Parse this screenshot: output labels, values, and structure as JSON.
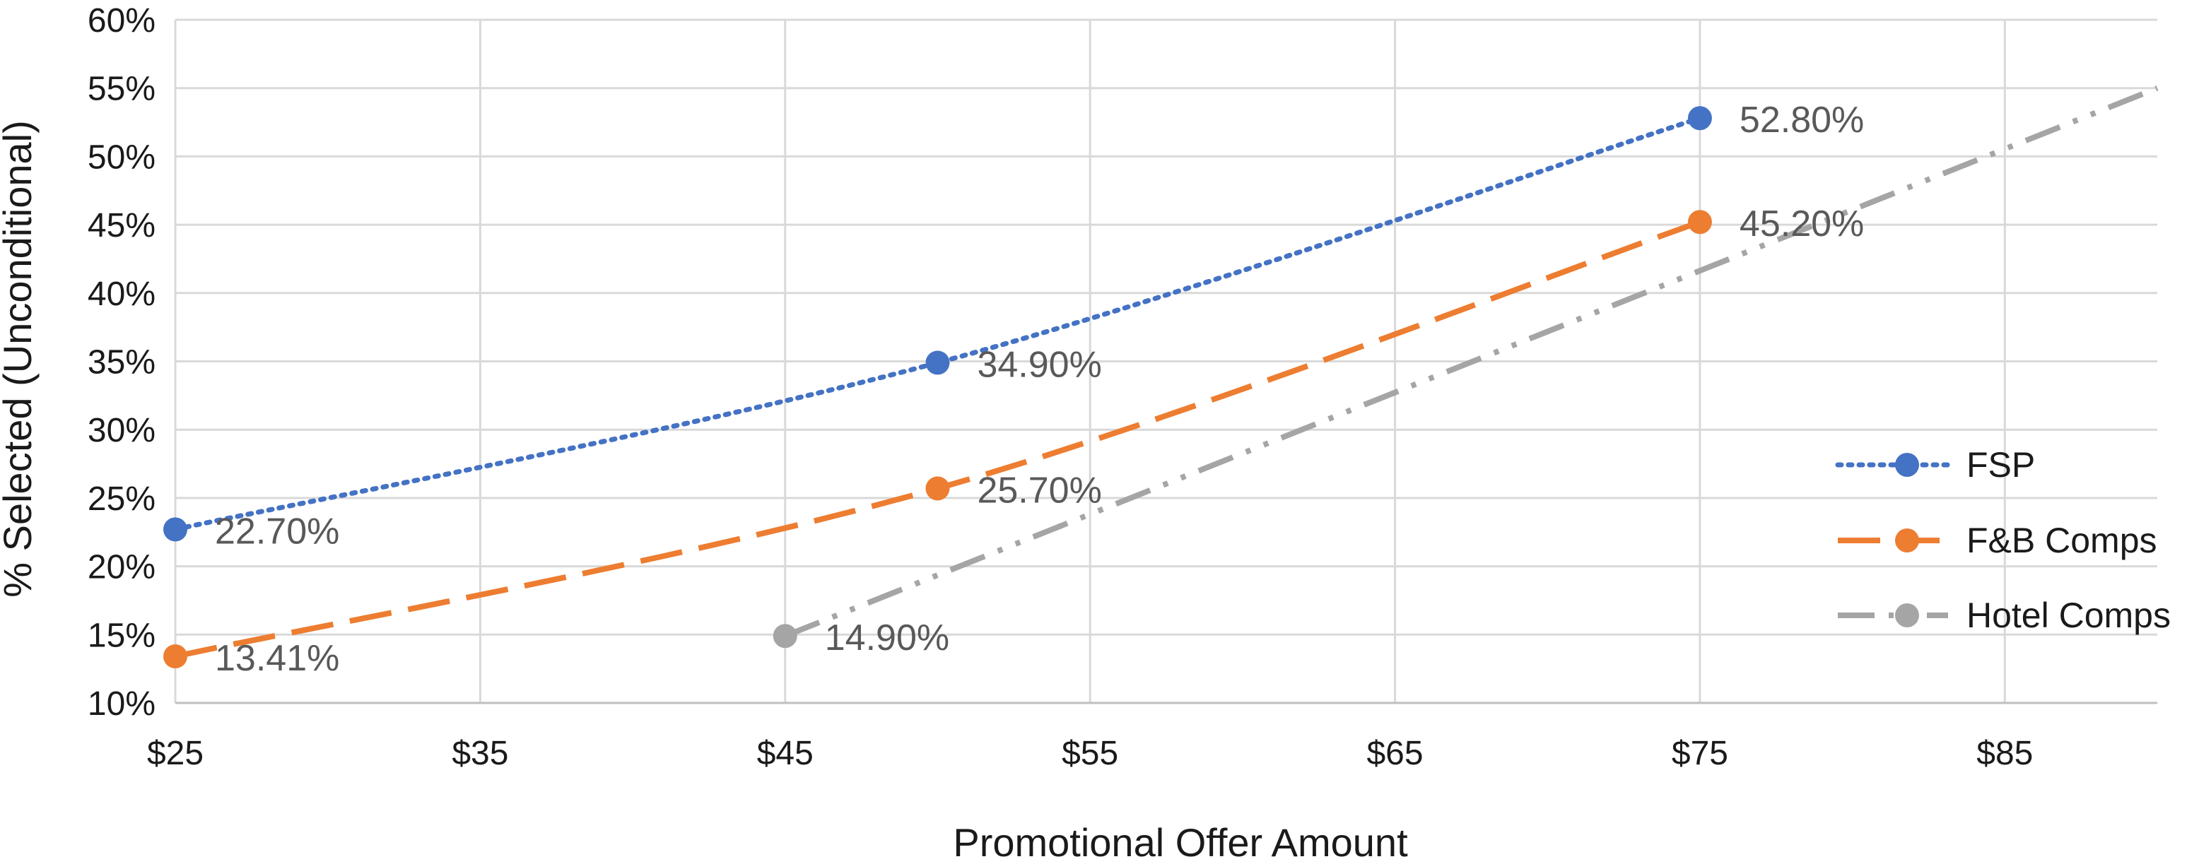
{
  "chart_data": {
    "type": "line",
    "title": "",
    "xlabel": "Promotional Offer Amount",
    "ylabel": "% Selected (Unconditional)",
    "xlim": [
      25,
      90
    ],
    "ylim": [
      10,
      60
    ],
    "x_ticks": [
      25,
      35,
      45,
      55,
      65,
      75,
      85
    ],
    "x_tick_labels": [
      "$25",
      "$35",
      "$45",
      "$55",
      "$65",
      "$75",
      "$85"
    ],
    "y_ticks": [
      10,
      15,
      20,
      25,
      30,
      35,
      40,
      45,
      50,
      55,
      60
    ],
    "y_tick_labels": [
      "10%",
      "15%",
      "20%",
      "25%",
      "30%",
      "35%",
      "40%",
      "45%",
      "50%",
      "55%",
      "60%"
    ],
    "grid": true,
    "legend_position": "right",
    "series": [
      {
        "name": "FSP",
        "color": "#4472C4",
        "line_style": "dotted",
        "points": [
          {
            "x": 25,
            "y": 22.7,
            "label": "22.70%"
          },
          {
            "x": 50,
            "y": 34.9,
            "label": "34.90%"
          },
          {
            "x": 75,
            "y": 52.8,
            "label": "52.80%"
          }
        ],
        "trend_extends_to": null
      },
      {
        "name": "F&B Comps",
        "color": "#ED7D31",
        "line_style": "long-dash",
        "points": [
          {
            "x": 25,
            "y": 13.41,
            "label": "13.41%"
          },
          {
            "x": 50,
            "y": 25.7,
            "label": "25.70%"
          },
          {
            "x": 75,
            "y": 45.2,
            "label": "45.20%"
          }
        ],
        "trend_extends_to": null
      },
      {
        "name": "Hotel Comps",
        "color": "#A5A5A5",
        "line_style": "long-dash-dot-dot",
        "points": [
          {
            "x": 45,
            "y": 14.9,
            "label": "14.90%"
          }
        ],
        "trend_extends_to": {
          "x": 90,
          "y": 55
        }
      }
    ]
  }
}
